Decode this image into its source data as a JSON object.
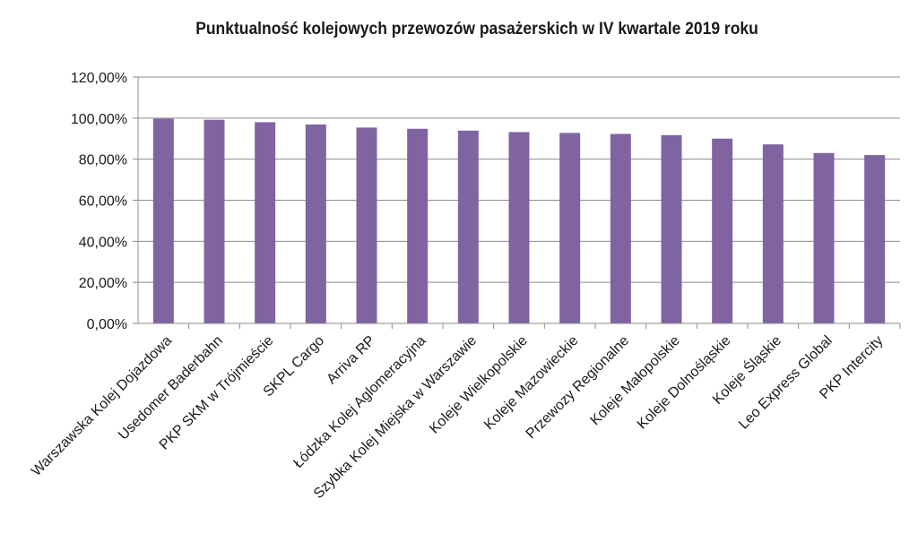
{
  "chart_data": {
    "type": "bar",
    "title": "Punktualność kolejowych przewozów pasażerskich w IV kwartale 2019 roku",
    "xlabel": "",
    "ylabel": "",
    "ylim": [
      0,
      120
    ],
    "y_ticks": [
      "0,00%",
      "20,00%",
      "40,00%",
      "60,00%",
      "80,00%",
      "100,00%",
      "120,00%"
    ],
    "categories": [
      "Warszawska Kolej Dojazdowa",
      "Usedomer Baderbahn",
      "PKP SKM w Trójmieście",
      "SKPL Cargo",
      "Arriva RP",
      "Łódzka Kolej Aglomeracyjna",
      "Szybka Kolej Miejska w Warszawie",
      "Koleje Wielkopolskie",
      "Koleje Mazowieckie",
      "Przewozy Regionalne",
      "Koleje Małopolskie",
      "Koleje Dolnośląskie",
      "Koleje Śląskie",
      "Leo Express Global",
      "PKP Intercity"
    ],
    "values": [
      99.7,
      99.2,
      98.0,
      96.9,
      95.4,
      94.8,
      93.9,
      93.2,
      92.8,
      92.3,
      91.7,
      90.0,
      87.2,
      83.0,
      82.0
    ],
    "grid": true,
    "legend": "none",
    "bar_color": "#8064A2"
  }
}
